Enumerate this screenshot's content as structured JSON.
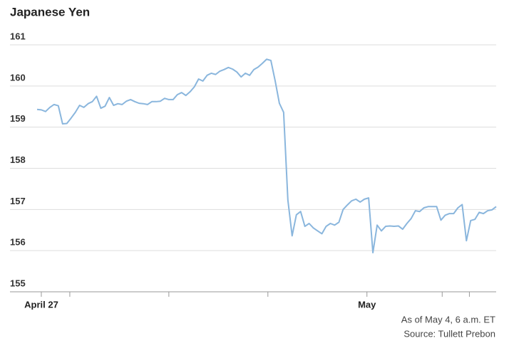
{
  "chart_data": {
    "type": "line",
    "title": "Japanese Yen",
    "notes": [
      "As of May 4, 6 a.m. ET",
      "Source: Tullett Prebon"
    ],
    "series": [
      {
        "name": "Japanese Yen",
        "color": "#8ab6dd",
        "values": [
          159.43,
          159.42,
          159.38,
          159.48,
          159.55,
          159.52,
          159.08,
          159.09,
          159.22,
          159.36,
          159.53,
          159.48,
          159.57,
          159.62,
          159.75,
          159.46,
          159.51,
          159.72,
          159.53,
          159.57,
          159.55,
          159.63,
          159.67,
          159.62,
          159.58,
          159.57,
          159.55,
          159.62,
          159.62,
          159.63,
          159.7,
          159.67,
          159.67,
          159.79,
          159.84,
          159.77,
          159.86,
          159.98,
          160.17,
          160.12,
          160.26,
          160.31,
          160.28,
          160.36,
          160.4,
          160.45,
          160.41,
          160.34,
          160.22,
          160.31,
          160.26,
          160.4,
          160.46,
          160.55,
          160.65,
          160.62,
          160.13,
          159.58,
          159.36,
          157.23,
          156.36,
          156.87,
          156.95,
          156.59,
          156.66,
          156.55,
          156.48,
          156.41,
          156.59,
          156.66,
          156.62,
          156.69,
          157.0,
          157.11,
          157.21,
          157.25,
          157.18,
          157.25,
          157.28,
          155.95,
          156.62,
          156.48,
          156.59,
          156.6,
          156.59,
          156.6,
          156.52,
          156.66,
          156.78,
          156.97,
          156.95,
          157.04,
          157.07,
          157.07,
          157.07,
          156.74,
          156.86,
          156.9,
          156.9,
          157.04,
          157.12,
          156.24,
          156.73,
          156.76,
          156.93,
          156.9,
          156.97,
          156.99,
          157.07
        ]
      }
    ],
    "xlim": [
      0,
      108
    ],
    "xticks": [
      {
        "value": 1.0,
        "label": "April 27"
      },
      {
        "value": 77.6,
        "label": "May"
      }
    ],
    "minor_xticks": [
      7.7,
      31.0,
      54.3,
      95.3,
      101.7
    ],
    "ylim": [
      155,
      161
    ],
    "yticks": [
      155,
      156,
      157,
      158,
      159,
      160,
      161
    ],
    "grid": true
  }
}
